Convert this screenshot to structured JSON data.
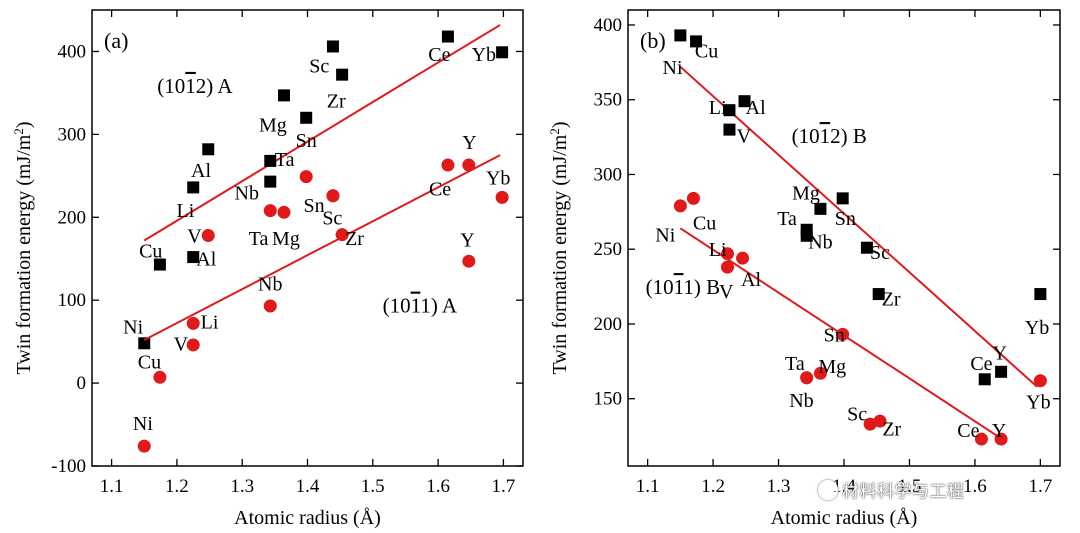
{
  "chart_data": [
    {
      "panel": "(a)",
      "type": "scatter",
      "xlabel": "Atomic radius (Å)",
      "ylabel": "Twin formation energy (mJ/m",
      "ylabel_sup": "2",
      "ylabel_close": ")",
      "xlim": [
        1.07,
        1.73
      ],
      "ylim": [
        -100,
        450
      ],
      "xticks": [
        "1.1",
        "1.2",
        "1.3",
        "1.4",
        "1.5",
        "1.6",
        "1.7"
      ],
      "xtick_values": [
        1.1,
        1.2,
        1.3,
        1.4,
        1.5,
        1.6,
        1.7
      ],
      "yticks": [
        "-100",
        "0",
        "100",
        "200",
        "300",
        "400"
      ],
      "ytick_values": [
        -100,
        0,
        100,
        200,
        300,
        400
      ],
      "series_labels": [
        {
          "pre": "(10",
          "bar": "1",
          "post": "2) A",
          "x": 1.17,
          "y": 350
        },
        {
          "pre": "(10",
          "bar": "1",
          "post": "1) A",
          "x": 1.515,
          "y": 85
        }
      ],
      "series": [
        {
          "marker": "square",
          "color": "#000000",
          "points": [
            {
              "label": "Ni",
              "x": 1.15,
              "y": 48,
              "lx": 1.133,
              "ly": 68
            },
            {
              "label": "Cu",
              "x": 1.174,
              "y": 143,
              "lx": 1.16,
              "ly": 160
            },
            {
              "label": "Li",
              "x": 1.225,
              "y": 236,
              "lx": 1.213,
              "ly": 209
            },
            {
              "label": "Al",
              "x": 1.225,
              "y": 152,
              "lx": 1.245,
              "ly": 150
            },
            {
              "label": "Al",
              "x": 1.248,
              "y": 282,
              "lx": 1.237,
              "ly": 257
            },
            {
              "label": "Nb",
              "x": 1.343,
              "y": 243,
              "lx": 1.307,
              "ly": 230
            },
            {
              "label": "Ta",
              "x": 1.343,
              "y": 268,
              "lx": 1.365,
              "ly": 270
            },
            {
              "label": "Mg",
              "x": 1.364,
              "y": 347,
              "lx": 1.347,
              "ly": 312
            },
            {
              "label": "Sn",
              "x": 1.398,
              "y": 320,
              "lx": 1.398,
              "ly": 293
            },
            {
              "label": "Sc",
              "x": 1.439,
              "y": 406,
              "lx": 1.418,
              "ly": 383
            },
            {
              "label": "Zr",
              "x": 1.453,
              "y": 372,
              "lx": 1.444,
              "ly": 341
            },
            {
              "label": "Ce",
              "x": 1.615,
              "y": 418,
              "lx": 1.602,
              "ly": 397
            },
            {
              "label": "Yb",
              "x": 1.698,
              "y": 399,
              "lx": 1.67,
              "ly": 397
            }
          ],
          "fit": [
            [
              1.15,
              172
            ],
            [
              1.695,
              432
            ]
          ]
        },
        {
          "marker": "circle",
          "color": "#e0191b",
          "points": [
            {
              "label": "Ni",
              "x": 1.15,
              "y": -76,
              "lx": 1.148,
              "ly": -48
            },
            {
              "label": "Cu",
              "x": 1.174,
              "y": 7,
              "lx": 1.158,
              "ly": 26
            },
            {
              "label": "V",
              "x": 1.225,
              "y": 46,
              "lx": 1.206,
              "ly": 48
            },
            {
              "label": "Li",
              "x": 1.225,
              "y": 72,
              "lx": 1.25,
              "ly": 74
            },
            {
              "label": "V",
              "x": 1.248,
              "y": 178,
              "lx": 1.227,
              "ly": 178
            },
            {
              "label": "Nb",
              "x": 1.343,
              "y": 93,
              "lx": 1.343,
              "ly": 120
            },
            {
              "label": "Ta",
              "x": 1.343,
              "y": 208,
              "lx": 1.325,
              "ly": 175
            },
            {
              "label": "Mg",
              "x": 1.364,
              "y": 206,
              "lx": 1.367,
              "ly": 175
            },
            {
              "label": "Ta",
              "x": 1.398,
              "y": 249,
              "lx": null,
              "ly": null
            },
            {
              "label": "Sn",
              "x": 1.439,
              "y": 226,
              "lx": 1.41,
              "ly": 215
            },
            {
              "label": "Sc",
              "x": 1.439,
              "y": 226,
              "lx": 1.438,
              "ly": 200
            },
            {
              "label": "Zr",
              "x": 1.453,
              "y": 179,
              "lx": 1.472,
              "ly": 175
            },
            {
              "label": "Ce",
              "x": 1.615,
              "y": 263,
              "lx": 1.603,
              "ly": 235
            },
            {
              "label": "Y",
              "x": 1.647,
              "y": 147,
              "lx": 1.645,
              "ly": 173
            },
            {
              "label": "Y",
              "x": 1.647,
              "y": 263,
              "lx": 1.648,
              "ly": 291
            },
            {
              "label": "Yb",
              "x": 1.698,
              "y": 224,
              "lx": 1.692,
              "ly": 248
            }
          ],
          "fit": [
            [
              1.15,
              52
            ],
            [
              1.695,
              275
            ]
          ]
        }
      ]
    },
    {
      "panel": "(b)",
      "type": "scatter",
      "xlabel": "Atomic radius (Å)",
      "ylabel": "Twin formation energy (mJ/m",
      "ylabel_sup": "2",
      "ylabel_close": ")",
      "xlim": [
        1.07,
        1.73
      ],
      "ylim": [
        105,
        410
      ],
      "xticks": [
        "1.1",
        "1.2",
        "1.3",
        "1.4",
        "1.5",
        "1.6",
        "1.7"
      ],
      "xtick_values": [
        1.1,
        1.2,
        1.3,
        1.4,
        1.5,
        1.6,
        1.7
      ],
      "yticks": [
        "150",
        "200",
        "250",
        "300",
        "350",
        "400"
      ],
      "ytick_values": [
        150,
        200,
        250,
        300,
        350,
        400
      ],
      "series_labels": [
        {
          "pre": "(10",
          "bar": "1",
          "post": "2) B",
          "x": 1.32,
          "y": 321
        },
        {
          "pre": "(10",
          "bar": "1",
          "post": "1) B",
          "x": 1.097,
          "y": 220
        }
      ],
      "series": [
        {
          "marker": "square",
          "color": "#000000",
          "points": [
            {
              "label": "Ni",
              "x": 1.15,
              "y": 393,
              "lx": 1.138,
              "ly": 372
            },
            {
              "label": "Cu",
              "x": 1.174,
              "y": 389,
              "lx": 1.19,
              "ly": 383
            },
            {
              "label": "Li",
              "x": 1.225,
              "y": 343,
              "lx": 1.207,
              "ly": 345
            },
            {
              "label": "Al",
              "x": 1.248,
              "y": 349,
              "lx": 1.265,
              "ly": 345
            },
            {
              "label": "V",
              "x": 1.225,
              "y": 330,
              "lx": 1.247,
              "ly": 326
            },
            {
              "label": "Mg",
              "x": 1.364,
              "y": 277,
              "lx": 1.342,
              "ly": 288
            },
            {
              "label": "Ta",
              "x": 1.343,
              "y": 263,
              "lx": 1.313,
              "ly": 271
            },
            {
              "label": "Nb",
              "x": 1.343,
              "y": 259,
              "lx": 1.364,
              "ly": 255
            },
            {
              "label": "Sn",
              "x": 1.398,
              "y": 284,
              "lx": 1.402,
              "ly": 271
            },
            {
              "label": "Sc",
              "x": 1.435,
              "y": 251,
              "lx": 1.455,
              "ly": 248
            },
            {
              "label": "Zr",
              "x": 1.453,
              "y": 220,
              "lx": 1.472,
              "ly": 217
            },
            {
              "label": "Ce",
              "x": 1.615,
              "y": 163,
              "lx": 1.61,
              "ly": 174
            },
            {
              "label": "Y",
              "x": 1.64,
              "y": 168,
              "lx": 1.638,
              "ly": 181
            },
            {
              "label": "Yb",
              "x": 1.7,
              "y": 220,
              "lx": 1.695,
              "ly": 198
            }
          ],
          "fit": [
            [
              1.15,
              372
            ],
            [
              1.695,
              158
            ]
          ]
        },
        {
          "marker": "circle",
          "color": "#e0191b",
          "points": [
            {
              "label": "Ni",
              "x": 1.15,
              "y": 279,
              "lx": 1.127,
              "ly": 260
            },
            {
              "label": "Cu",
              "x": 1.17,
              "y": 284,
              "lx": 1.187,
              "ly": 268
            },
            {
              "label": "Li",
              "x": 1.222,
              "y": 247,
              "lx": 1.207,
              "ly": 250
            },
            {
              "label": "V",
              "x": 1.222,
              "y": 238,
              "lx": 1.22,
              "ly": 222
            },
            {
              "label": "Al",
              "x": 1.245,
              "y": 244,
              "lx": 1.258,
              "ly": 230
            },
            {
              "label": "Sn",
              "x": 1.398,
              "y": 193,
              "lx": 1.385,
              "ly": 193
            },
            {
              "label": "Ta",
              "x": 1.343,
              "y": 164,
              "lx": 1.325,
              "ly": 174
            },
            {
              "label": "Mg",
              "x": 1.364,
              "y": 167,
              "lx": 1.382,
              "ly": 172
            },
            {
              "label": "Nb",
              "x": 1.343,
              "y": 164,
              "lx": 1.335,
              "ly": 149
            },
            {
              "label": "Sc",
              "x": 1.44,
              "y": 133,
              "lx": 1.42,
              "ly": 140
            },
            {
              "label": "Zr",
              "x": 1.455,
              "y": 135,
              "lx": 1.473,
              "ly": 130
            },
            {
              "label": "Ce",
              "x": 1.61,
              "y": 123,
              "lx": 1.59,
              "ly": 129
            },
            {
              "label": "Y",
              "x": 1.64,
              "y": 123,
              "lx": 1.637,
              "ly": 129
            },
            {
              "label": "Yb",
              "x": 1.7,
              "y": 162,
              "lx": 1.697,
              "ly": 148
            }
          ],
          "fit": [
            [
              1.15,
              264
            ],
            [
              1.645,
              122
            ]
          ]
        }
      ]
    }
  ],
  "watermark": "材料科学与工程"
}
